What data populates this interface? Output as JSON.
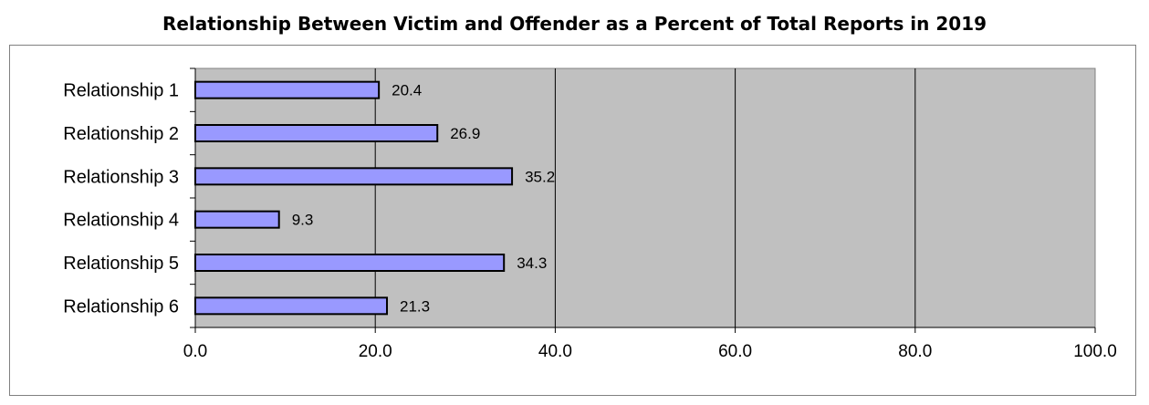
{
  "title": "Relationship Between Victim and Offender as a Percent of Total Reports in 2019",
  "chart_data": {
    "type": "bar",
    "orientation": "horizontal",
    "title": "Relationship Between Victim and Offender as a Percent of Total Reports in 2019",
    "categories": [
      "Relationship 1",
      "Relationship 2",
      "Relationship 3",
      "Relationship 4",
      "Relationship 5",
      "Relationship 6"
    ],
    "values": [
      20.4,
      26.9,
      35.2,
      9.3,
      34.3,
      21.3
    ],
    "value_labels": [
      "20.4",
      "26.9",
      "35.2",
      "9.3",
      "34.3",
      "21.3"
    ],
    "xlim": [
      0,
      100
    ],
    "x_ticks": [
      "0.0",
      "20.0",
      "40.0",
      "60.0",
      "80.0",
      "100.0"
    ],
    "grid": "vertical",
    "legend": "none",
    "colors": {
      "bar_fill": "#9999ff",
      "bar_stroke": "#000000",
      "plot_background": "#c0c0c0",
      "gridline": "#000000"
    }
  }
}
